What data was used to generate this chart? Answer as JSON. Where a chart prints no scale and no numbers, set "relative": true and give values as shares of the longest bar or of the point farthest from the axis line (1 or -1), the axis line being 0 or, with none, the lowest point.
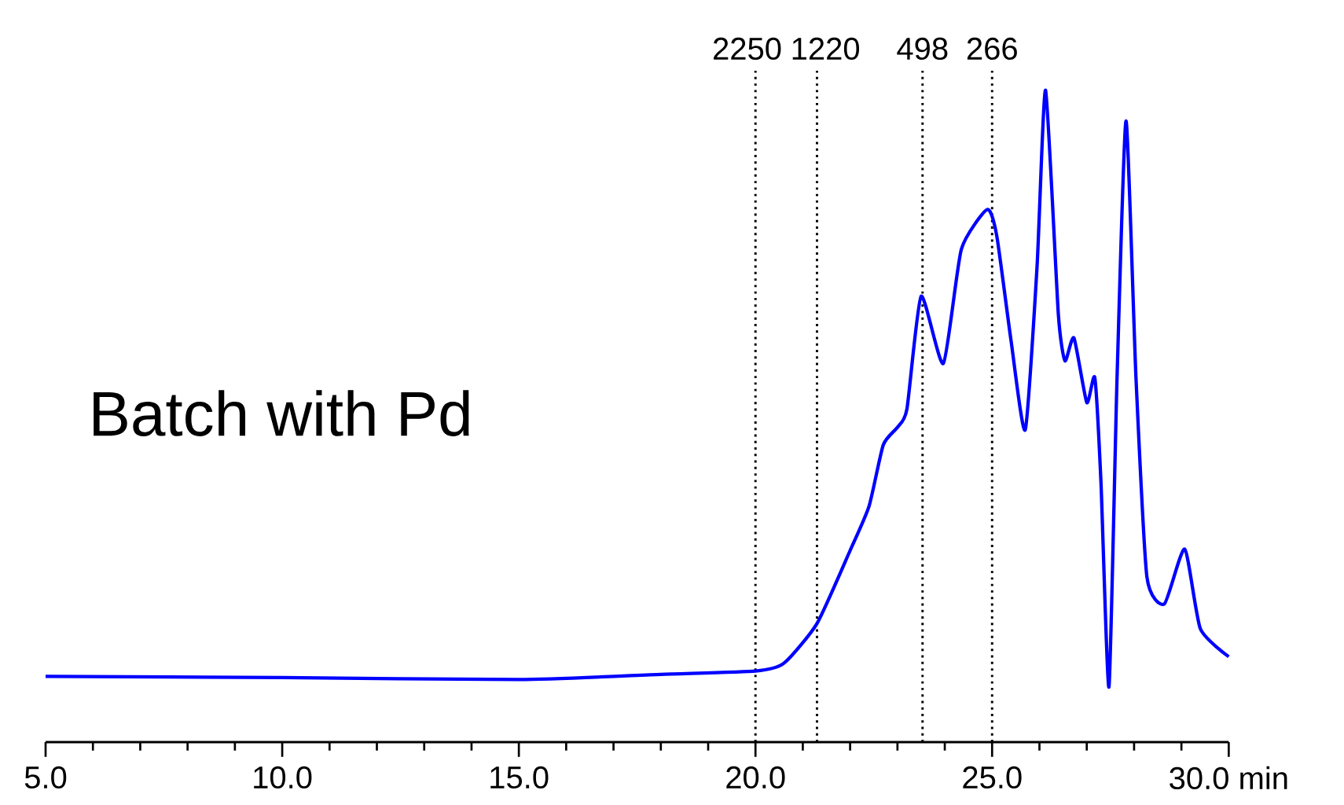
{
  "chart_data": {
    "type": "line",
    "relative": true,
    "x": [
      5.0,
      10.0,
      15.0,
      18.0,
      20.0,
      20.6,
      21.3,
      22.0,
      22.4,
      22.7,
      23.0,
      23.2,
      23.5,
      23.97,
      24.35,
      24.9,
      25.1,
      25.4,
      25.7,
      25.95,
      26.13,
      26.4,
      26.54,
      26.73,
      27.0,
      27.17,
      27.3,
      27.47,
      27.64,
      27.83,
      28.04,
      28.27,
      28.64,
      29.07,
      29.4,
      30.0
    ],
    "series": [
      {
        "color": "#0000ff",
        "values": [
          0.101,
          0.099,
          0.096,
          0.104,
          0.109,
          0.121,
          0.182,
          0.294,
          0.362,
          0.456,
          0.483,
          0.511,
          0.684,
          0.581,
          0.756,
          0.817,
          0.776,
          0.616,
          0.479,
          0.73,
          1.0,
          0.656,
          0.585,
          0.62,
          0.521,
          0.559,
          0.399,
          0.085,
          0.559,
          0.953,
          0.559,
          0.254,
          0.212,
          0.296,
          0.174,
          0.131
        ]
      }
    ],
    "xlim": [
      5.0,
      30.0
    ],
    "xticks": [
      {
        "value": 5,
        "label": "5.0"
      },
      {
        "value": 6,
        "label": null
      },
      {
        "value": 7,
        "label": null
      },
      {
        "value": 8,
        "label": null
      },
      {
        "value": 9,
        "label": null
      },
      {
        "value": 10,
        "label": "10.0"
      },
      {
        "value": 11,
        "label": null
      },
      {
        "value": 12,
        "label": null
      },
      {
        "value": 13,
        "label": null
      },
      {
        "value": 14,
        "label": null
      },
      {
        "value": 15,
        "label": "15.0"
      },
      {
        "value": 16,
        "label": null
      },
      {
        "value": 17,
        "label": null
      },
      {
        "value": 18,
        "label": null
      },
      {
        "value": 19,
        "label": null
      },
      {
        "value": 20,
        "label": "20.0"
      },
      {
        "value": 21,
        "label": null
      },
      {
        "value": 22,
        "label": null
      },
      {
        "value": 23,
        "label": null
      },
      {
        "value": 24,
        "label": null
      },
      {
        "value": 25,
        "label": "25.0"
      },
      {
        "value": 26,
        "label": null
      },
      {
        "value": 27,
        "label": null
      },
      {
        "value": 28,
        "label": null
      },
      {
        "value": 29,
        "label": null
      },
      {
        "value": 30,
        "label": "30.0 min"
      }
    ],
    "ref_lines": [
      {
        "axis": "x",
        "value": 20.0,
        "color": "#000000",
        "line_style": "dotted"
      },
      {
        "axis": "x",
        "value": 21.3,
        "color": "#000000",
        "line_style": "dotted"
      },
      {
        "axis": "x",
        "value": 23.53,
        "color": "#000000",
        "line_style": "dotted"
      },
      {
        "axis": "x",
        "value": 25.0,
        "color": "#000000",
        "line_style": "dotted"
      }
    ],
    "annotations": [
      "Batch with Pd",
      {
        "text": "2250",
        "x": 20.0,
        "y": 1.03
      },
      {
        "text": "1220",
        "x": 21.3,
        "y": 1.03
      },
      {
        "text": "498",
        "x": 23.53,
        "y": 1.03
      },
      {
        "text": "266",
        "x": 25.0,
        "y": 1.03
      }
    ],
    "grid": false,
    "marker": "none",
    "line_style": "solid"
  }
}
